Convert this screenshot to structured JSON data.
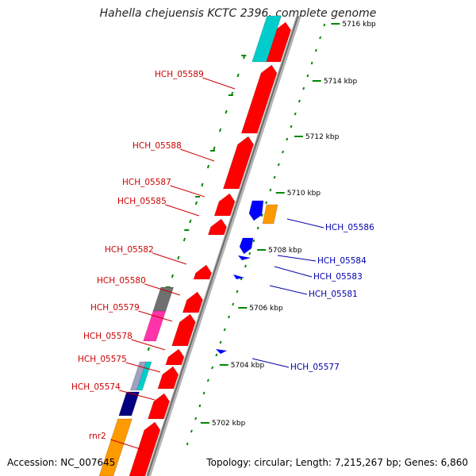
{
  "header": {
    "title": "Hahella chejuensis KCTC 2396, complete genome"
  },
  "footer": {
    "accession": "Accession: NC_007645",
    "topology": "Topology: circular; Length: 7,215,267 bp; Genes: 6,860"
  },
  "scale_labels": [
    "5716 kbp",
    "5714 kbp",
    "5712 kbp",
    "5710 kbp",
    "5708 kbp",
    "5706 kbp",
    "5704 kbp",
    "5702 kbp"
  ],
  "left_labels": [
    "HCH_05589",
    "HCH_05588",
    "HCH_05587",
    "HCH_05585",
    "HCH_05582",
    "HCH_05580",
    "HCH_05579",
    "HCH_05578",
    "HCH_05575",
    "HCH_05574",
    "rnr2"
  ],
  "right_labels": [
    "HCH_05586",
    "HCH_05584",
    "HCH_05583",
    "HCH_05581",
    "HCH_05577"
  ],
  "colors": {
    "forward_gene": "#ff0000",
    "reverse_gene": "#0000ff",
    "left_label": "#cc0000",
    "right_label": "#0000aa",
    "ticks": "#008800",
    "backbone": "#999999",
    "cyan_feature": "#00cccc",
    "orange_feature": "#ff9900",
    "magenta_feature": "#ff33aa",
    "gray_feature": "#707070",
    "navy_feature": "#000080"
  }
}
